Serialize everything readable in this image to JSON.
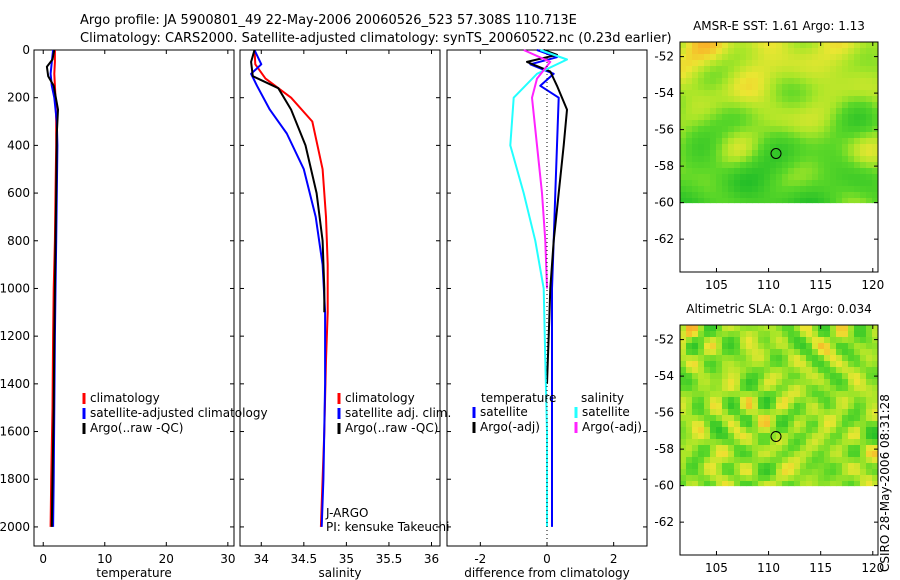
{
  "header": {
    "title_line1": "Argo profile: JA 5900801_49 22-May-2006 20060526_523 57.308S 110.713E",
    "title_line2": "Climatology: CARS2000. Satellite-adjusted climatology: synTS_20060522.nc (0.23d earlier)"
  },
  "credit": "CSIRO 28-May-2006 08:31:28",
  "colors": {
    "red": "#ff0000",
    "blue": "#0000ff",
    "black": "#000000",
    "cyan": "#22ffff",
    "magenta": "#ff22ff"
  },
  "chart_data": [
    {
      "id": "temperature",
      "type": "line",
      "xlabel": "temperature",
      "ylabel": "",
      "xlim": [
        -1.5,
        31
      ],
      "ylim": [
        2080,
        0
      ],
      "xticks": [
        0,
        10,
        20,
        30
      ],
      "xtick_labels": [
        "0",
        "10",
        "20",
        "30"
      ],
      "yticks": [
        0,
        200,
        400,
        600,
        800,
        1000,
        1200,
        1400,
        1600,
        1800,
        2000
      ],
      "ytick_labels": [
        "0",
        "200",
        "400",
        "600",
        "800",
        "1000",
        "1200",
        "1400",
        "1600",
        "1800",
        "2000"
      ],
      "legend": [
        {
          "label": "climatology",
          "color": "#ff0000"
        },
        {
          "label": "satellite-adjusted climatology",
          "color": "#0000ff"
        },
        {
          "label": "Argo(..raw -QC)",
          "color": "#000000"
        }
      ],
      "series": [
        {
          "name": "climatology",
          "color": "#ff0000",
          "x": [
            1.9,
            1.9,
            1.8,
            1.9,
            2.0,
            2.1,
            2.1,
            2.0,
            1.9,
            1.7,
            1.6,
            1.5,
            1.3,
            1.2
          ],
          "y": [
            0,
            50,
            100,
            150,
            200,
            300,
            400,
            600,
            800,
            1000,
            1200,
            1500,
            1800,
            2000
          ]
        },
        {
          "name": "satellite-adjusted climatology",
          "color": "#0000ff",
          "x": [
            1.6,
            1.4,
            1.2,
            1.4,
            1.8,
            2.2,
            2.3,
            2.2,
            2.1,
            2.0,
            1.9,
            1.8,
            1.7,
            1.6
          ],
          "y": [
            0,
            50,
            100,
            150,
            200,
            300,
            400,
            600,
            800,
            1000,
            1200,
            1500,
            1800,
            2000
          ]
        },
        {
          "name": "Argo(..raw -QC)",
          "color": "#000000",
          "x": [
            1.8,
            1.5,
            0.6,
            0.8,
            1.7,
            2.4,
            2.2,
            2.1,
            2.0,
            1.9,
            1.8,
            1.7,
            1.5,
            1.4
          ],
          "y": [
            0,
            40,
            70,
            110,
            150,
            250,
            350,
            600,
            800,
            1000,
            1200,
            1500,
            1800,
            2000
          ]
        }
      ]
    },
    {
      "id": "salinity",
      "type": "line",
      "xlabel": "salinity",
      "ylabel": "",
      "xlim": [
        33.75,
        36.1
      ],
      "ylim": [
        2080,
        0
      ],
      "xticks": [
        34,
        34.5,
        35,
        35.5,
        36
      ],
      "xtick_labels": [
        "34",
        "34.5",
        "35",
        "35.5",
        "36"
      ],
      "yticks": [
        0,
        200,
        400,
        600,
        800,
        1000,
        1200,
        1400,
        1600,
        1800,
        2000
      ],
      "legend": [
        {
          "label": "climatology",
          "color": "#ff0000"
        },
        {
          "label": "satellite adj. clim.",
          "color": "#0000ff"
        },
        {
          "label": "Argo(..raw -QC)",
          "color": "#000000"
        }
      ],
      "annotations": [
        "J-ARGO",
        "PI: kensuke Takeuchi"
      ],
      "series": [
        {
          "name": "climatology",
          "color": "#ff0000",
          "x": [
            33.92,
            33.93,
            34.05,
            34.35,
            34.6,
            34.72,
            34.76,
            34.78,
            34.78,
            34.76,
            34.74,
            34.72,
            34.7
          ],
          "y": [
            0,
            60,
            120,
            200,
            300,
            500,
            700,
            900,
            1100,
            1300,
            1600,
            1800,
            2000
          ]
        },
        {
          "name": "satellite adj. clim.",
          "color": "#0000ff",
          "x": [
            33.92,
            34.0,
            33.88,
            33.95,
            34.1,
            34.3,
            34.5,
            34.64,
            34.72,
            34.75,
            34.75,
            34.73,
            34.71
          ],
          "y": [
            0,
            60,
            100,
            150,
            250,
            350,
            500,
            700,
            900,
            1100,
            1400,
            1800,
            2000
          ]
        },
        {
          "name": "Argo(..raw -QC)",
          "color": "#000000",
          "x": [
            33.92,
            33.88,
            33.9,
            34.2,
            34.35,
            34.52,
            34.65,
            34.72,
            34.74,
            34.74
          ],
          "y": [
            0,
            50,
            110,
            160,
            250,
            400,
            600,
            800,
            1000,
            1100
          ]
        }
      ]
    },
    {
      "id": "difference",
      "type": "line",
      "xlabel": "difference from climatology",
      "ylabel": "",
      "xlim": [
        -3.0,
        3.0
      ],
      "ylim": [
        2080,
        0
      ],
      "xticks": [
        -2,
        0,
        2
      ],
      "xtick_labels": [
        "-2",
        "0",
        "2"
      ],
      "yticks": [
        0,
        200,
        400,
        600,
        800,
        1000,
        1200,
        1400,
        1600,
        1800,
        2000
      ],
      "legend_groups": [
        {
          "heading": "temperature",
          "items": [
            {
              "label": "satellite",
              "color": "#0000ff"
            },
            {
              "label": "Argo(-adj)",
              "color": "#000000"
            }
          ]
        },
        {
          "heading": "salinity",
          "items": [
            {
              "label": "satellite",
              "color": "#22ffff"
            },
            {
              "label": "Argo(-adj)",
              "color": "#ff22ff"
            }
          ]
        }
      ],
      "series": [
        {
          "name": "temperature satellite",
          "color": "#0000ff",
          "x": [
            -0.3,
            0.3,
            -0.5,
            0.2,
            -0.2,
            0.35,
            0.3,
            0.25,
            0.2,
            0.15,
            0.15,
            0.15
          ],
          "y": [
            0,
            30,
            60,
            100,
            150,
            200,
            400,
            600,
            800,
            1000,
            1400,
            2000
          ]
        },
        {
          "name": "temperature Argo(-adj)",
          "color": "#000000",
          "x": [
            -0.1,
            0.3,
            -0.6,
            0.1,
            0.3,
            0.6,
            0.5,
            0.35,
            0.2,
            0.1,
            0.05,
            0.0
          ],
          "y": [
            0,
            20,
            50,
            90,
            150,
            250,
            400,
            600,
            800,
            1000,
            1200,
            1400
          ]
        },
        {
          "name": "salinity satellite",
          "color": "#22ffff",
          "x": [
            -0.2,
            0.6,
            -0.3,
            -1.0,
            -1.1,
            -0.7,
            -0.35,
            -0.1,
            -0.05,
            0.0,
            0.0
          ],
          "y": [
            0,
            40,
            100,
            200,
            400,
            600,
            800,
            1000,
            1300,
            1600,
            2000
          ]
        },
        {
          "name": "salinity Argo(-adj)",
          "color": "#ff22ff",
          "x": [
            -0.7,
            0.1,
            -0.3,
            -0.45,
            -0.3,
            -0.15,
            -0.05,
            0.0
          ],
          "y": [
            0,
            50,
            120,
            200,
            400,
            600,
            800,
            1000
          ]
        }
      ]
    },
    {
      "id": "sst_map",
      "type": "heatmap",
      "title": "AMSR-E SST: 1.61  Argo: 1.13",
      "xlim": [
        101.5,
        120.5
      ],
      "ylim": [
        -63.8,
        -51.2
      ],
      "xticks": [
        105,
        110,
        115,
        120
      ],
      "xtick_labels": [
        "105",
        "110",
        "115",
        "120"
      ],
      "yticks": [
        -52,
        -54,
        -56,
        -58,
        -60,
        -62
      ],
      "ytick_labels": [
        "-52",
        "-54",
        "-56",
        "-58",
        "-60",
        "-62"
      ],
      "data_extent_lat": [
        -60,
        -51.2
      ],
      "marker": {
        "lon": 110.713,
        "lat": -57.308
      }
    },
    {
      "id": "sla_map",
      "type": "heatmap",
      "title": "Altimetric SLA: 0.1  Argo: 0.034",
      "xlim": [
        101.5,
        120.5
      ],
      "ylim": [
        -63.8,
        -51.2
      ],
      "xticks": [
        105,
        110,
        115,
        120
      ],
      "xtick_labels": [
        "105",
        "110",
        "115",
        "120"
      ],
      "yticks": [
        -52,
        -54,
        -56,
        -58,
        -60,
        -62
      ],
      "ytick_labels": [
        "-52",
        "-54",
        "-56",
        "-58",
        "-60",
        "-62"
      ],
      "data_extent_lat": [
        -60,
        -51.2
      ],
      "marker": {
        "lon": 110.713,
        "lat": -57.308
      }
    }
  ]
}
